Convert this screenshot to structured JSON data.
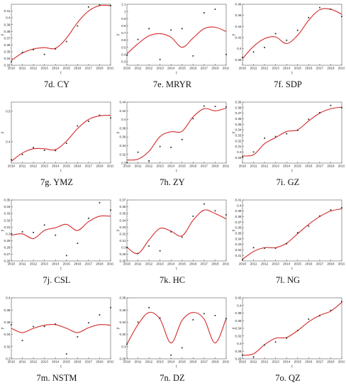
{
  "figure": {
    "panels": [
      {
        "caption": "7d. CY"
      },
      {
        "caption": "7e. MRYR"
      },
      {
        "caption": "7f. SDP"
      },
      {
        "caption": "7g. YMZ"
      },
      {
        "caption": "7h. ZY"
      },
      {
        "caption": "7i. GZ"
      },
      {
        "caption": "7j. CSL"
      },
      {
        "caption": "7k. HC"
      },
      {
        "caption": "7l. NG"
      },
      {
        "caption": "7m. NSTM"
      },
      {
        "caption": "7n. DZ"
      },
      {
        "caption": "7o. QZ"
      }
    ]
  },
  "colors": {
    "fit_line": "#d42a2a",
    "points": "#333333",
    "axis": "#555555"
  },
  "chart_data": [
    {
      "type": "scatter",
      "xlabel": "t",
      "ylabel": "y",
      "xlim": [
        2010,
        2019
      ],
      "ylim": [
        0.33,
        0.42
      ],
      "yticks": [
        0.33,
        0.34,
        0.35,
        0.36,
        0.37,
        0.38,
        0.39,
        0.4,
        0.41
      ],
      "x": [
        2010,
        2011,
        2012,
        2013,
        2014,
        2015,
        2016,
        2017,
        2018,
        2019
      ],
      "points": [
        0.335,
        0.349,
        0.353,
        0.346,
        0.354,
        0.365,
        0.388,
        0.416,
        0.419,
        0.418
      ],
      "fit": [
        0.337,
        0.348,
        0.354,
        0.356,
        0.355,
        0.37,
        0.393,
        0.41,
        0.418,
        0.418
      ]
    },
    {
      "type": "scatter",
      "xlabel": "t",
      "ylabel": "y",
      "xlim": [
        2010,
        2019
      ],
      "ylim": [
        0.25,
        1.1
      ],
      "yticks": [
        0.3,
        0.4,
        0.5,
        0.6,
        0.7,
        0.8,
        0.9,
        1.0,
        1.1
      ],
      "x": [
        2010,
        2011,
        2012,
        2013,
        2014,
        2015,
        2016,
        2017,
        2018,
        2019
      ],
      "points": [
        0.39,
        0.61,
        0.76,
        0.33,
        0.74,
        0.76,
        0.38,
        0.98,
        1.03,
        0.4
      ],
      "fit": [
        0.41,
        0.55,
        0.66,
        0.69,
        0.64,
        0.5,
        0.63,
        0.76,
        0.78,
        0.72
      ]
    },
    {
      "type": "scatter",
      "xlabel": "t",
      "ylabel": "y",
      "xlim": [
        2010,
        2019
      ],
      "ylim": [
        0.37,
        0.48
      ],
      "yticks": [
        0.38,
        0.4,
        0.42,
        0.44,
        0.46,
        0.48
      ],
      "x": [
        2010,
        2011,
        2012,
        2013,
        2014,
        2015,
        2016,
        2017,
        2018,
        2019
      ],
      "points": [
        0.384,
        0.394,
        0.402,
        0.427,
        0.415,
        0.433,
        0.456,
        0.474,
        0.471,
        0.458
      ],
      "fit": [
        0.382,
        0.404,
        0.418,
        0.421,
        0.409,
        0.424,
        0.451,
        0.47,
        0.471,
        0.462
      ]
    },
    {
      "type": "scatter",
      "xlabel": "t",
      "ylabel": "y",
      "xlim": [
        2010,
        2019
      ],
      "ylim": [
        0.33,
        0.53
      ],
      "yticks": [
        0.4,
        0.5
      ],
      "x": [
        2010,
        2011,
        2012,
        2013,
        2014,
        2015,
        2016,
        2017,
        2018,
        2019
      ],
      "points": [
        0.341,
        0.358,
        0.381,
        0.372,
        0.371,
        0.395,
        0.452,
        0.467,
        0.487,
        0.478
      ],
      "fit": [
        0.336,
        0.363,
        0.377,
        0.377,
        0.374,
        0.402,
        0.443,
        0.473,
        0.485,
        0.487
      ]
    },
    {
      "type": "scatter",
      "xlabel": "t",
      "ylabel": "y",
      "xlim": [
        2010,
        2019
      ],
      "ylim": [
        0.3,
        0.44
      ],
      "yticks": [
        0.3,
        0.32,
        0.34,
        0.36,
        0.38,
        0.4,
        0.42,
        0.44
      ],
      "x": [
        2010,
        2011,
        2012,
        2013,
        2014,
        2015,
        2016,
        2017,
        2018,
        2019
      ],
      "points": [
        0.301,
        0.325,
        0.305,
        0.338,
        0.336,
        0.354,
        0.402,
        0.431,
        0.43,
        0.429
      ],
      "fit": [
        0.307,
        0.309,
        0.327,
        0.361,
        0.372,
        0.373,
        0.406,
        0.425,
        0.42,
        0.426
      ]
    },
    {
      "type": "scatter",
      "xlabel": "t",
      "ylabel": "y",
      "xlim": [
        2010,
        2019
      ],
      "ylim": [
        0.28,
        0.39
      ],
      "yticks": [
        0.29,
        0.3,
        0.31,
        0.32,
        0.33,
        0.34,
        0.35,
        0.36,
        0.37,
        0.38,
        0.39
      ],
      "x": [
        2010,
        2011,
        2012,
        2013,
        2014,
        2015,
        2016,
        2017,
        2018,
        2019
      ],
      "points": [
        0.291,
        0.3,
        0.325,
        0.328,
        0.333,
        0.339,
        0.359,
        0.371,
        0.384,
        0.38
      ],
      "fit": [
        0.293,
        0.295,
        0.315,
        0.326,
        0.337,
        0.34,
        0.356,
        0.37,
        0.378,
        0.381
      ]
    },
    {
      "type": "scatter",
      "xlabel": "t",
      "ylabel": "y",
      "xlim": [
        2010,
        2019
      ],
      "ylim": [
        0.26,
        0.35
      ],
      "yticks": [
        0.26,
        0.27,
        0.28,
        0.29,
        0.3,
        0.31,
        0.32,
        0.33,
        0.34,
        0.35
      ],
      "x": [
        2010,
        2011,
        2012,
        2013,
        2014,
        2015,
        2016,
        2017,
        2018,
        2019
      ],
      "points": [
        0.3,
        0.303,
        0.302,
        0.313,
        0.298,
        0.268,
        0.286,
        0.323,
        0.346,
        0.335
      ],
      "fit": [
        0.298,
        0.3,
        0.293,
        0.305,
        0.309,
        0.314,
        0.305,
        0.318,
        0.326,
        0.326
      ]
    },
    {
      "type": "scatter",
      "xlabel": "t",
      "ylabel": "y",
      "xlim": [
        2010,
        2019
      ],
      "ylim": [
        0.28,
        0.37
      ],
      "yticks": [
        0.28,
        0.29,
        0.3,
        0.31,
        0.32,
        0.33,
        0.34,
        0.35,
        0.36,
        0.37
      ],
      "x": [
        2010,
        2011,
        2012,
        2013,
        2014,
        2015,
        2016,
        2017,
        2018,
        2019
      ],
      "points": [
        0.3,
        0.291,
        0.302,
        0.295,
        0.323,
        0.315,
        0.346,
        0.364,
        0.354,
        0.348
      ],
      "fit": [
        0.3,
        0.291,
        0.311,
        0.328,
        0.324,
        0.317,
        0.34,
        0.355,
        0.35,
        0.342
      ]
    },
    {
      "type": "scatter",
      "xlabel": "t",
      "ylabel": "y",
      "xlim": [
        2010,
        2019
      ],
      "ylim": [
        0.3,
        0.41
      ],
      "yticks": [
        0.31,
        0.32,
        0.33,
        0.34,
        0.35,
        0.36,
        0.37,
        0.38,
        0.39,
        0.4,
        0.41
      ],
      "x": [
        2010,
        2011,
        2012,
        2013,
        2014,
        2015,
        2016,
        2017,
        2018,
        2019
      ],
      "points": [
        0.302,
        0.324,
        0.323,
        0.323,
        0.331,
        0.351,
        0.363,
        0.381,
        0.392,
        0.396
      ],
      "fit": [
        0.303,
        0.317,
        0.324,
        0.324,
        0.332,
        0.349,
        0.366,
        0.38,
        0.39,
        0.394
      ]
    },
    {
      "type": "scatter",
      "xlabel": "t",
      "ylabel": "y",
      "xlim": [
        2010,
        2019
      ],
      "ylim": [
        0.3,
        0.4
      ],
      "yticks": [
        0.3,
        0.32,
        0.34,
        0.36,
        0.38,
        0.4
      ],
      "x": [
        2010,
        2011,
        2012,
        2013,
        2014,
        2015,
        2016,
        2017,
        2018,
        2019
      ],
      "points": [
        0.356,
        0.33,
        0.353,
        0.353,
        0.357,
        0.308,
        0.336,
        0.359,
        0.372,
        0.384
      ],
      "fit": [
        0.35,
        0.343,
        0.35,
        0.355,
        0.356,
        0.35,
        0.343,
        0.351,
        0.356,
        0.355
      ]
    },
    {
      "type": "scatter",
      "xlabel": "t",
      "ylabel": "y",
      "xlim": [
        2010,
        2019
      ],
      "ylim": [
        0.28,
        0.38
      ],
      "yticks": [
        0.28,
        0.3,
        0.32,
        0.34,
        0.36,
        0.38
      ],
      "x": [
        2010,
        2011,
        2012,
        2013,
        2014,
        2015,
        2016,
        2017,
        2018,
        2019
      ],
      "points": [
        0.304,
        0.34,
        0.364,
        0.347,
        0.286,
        0.298,
        0.344,
        0.354,
        0.351,
        0.346
      ],
      "fit": [
        0.304,
        0.336,
        0.356,
        0.345,
        0.306,
        0.343,
        0.356,
        0.345,
        0.306,
        0.346
      ]
    },
    {
      "type": "scatter",
      "xlabel": "t",
      "ylabel": "y",
      "xlim": [
        2010,
        2019
      ],
      "ylim": [
        0.26,
        0.42
      ],
      "yticks": [
        0.26,
        0.28,
        0.3,
        0.32,
        0.34,
        0.36,
        0.38,
        0.4,
        0.42
      ],
      "x": [
        2010,
        2011,
        2012,
        2013,
        2014,
        2015,
        2016,
        2017,
        2018,
        2019
      ],
      "points": [
        0.27,
        0.265,
        0.296,
        0.304,
        0.314,
        0.334,
        0.364,
        0.373,
        0.387,
        0.41
      ],
      "fit": [
        0.269,
        0.273,
        0.297,
        0.314,
        0.316,
        0.334,
        0.357,
        0.374,
        0.385,
        0.408
      ]
    }
  ]
}
